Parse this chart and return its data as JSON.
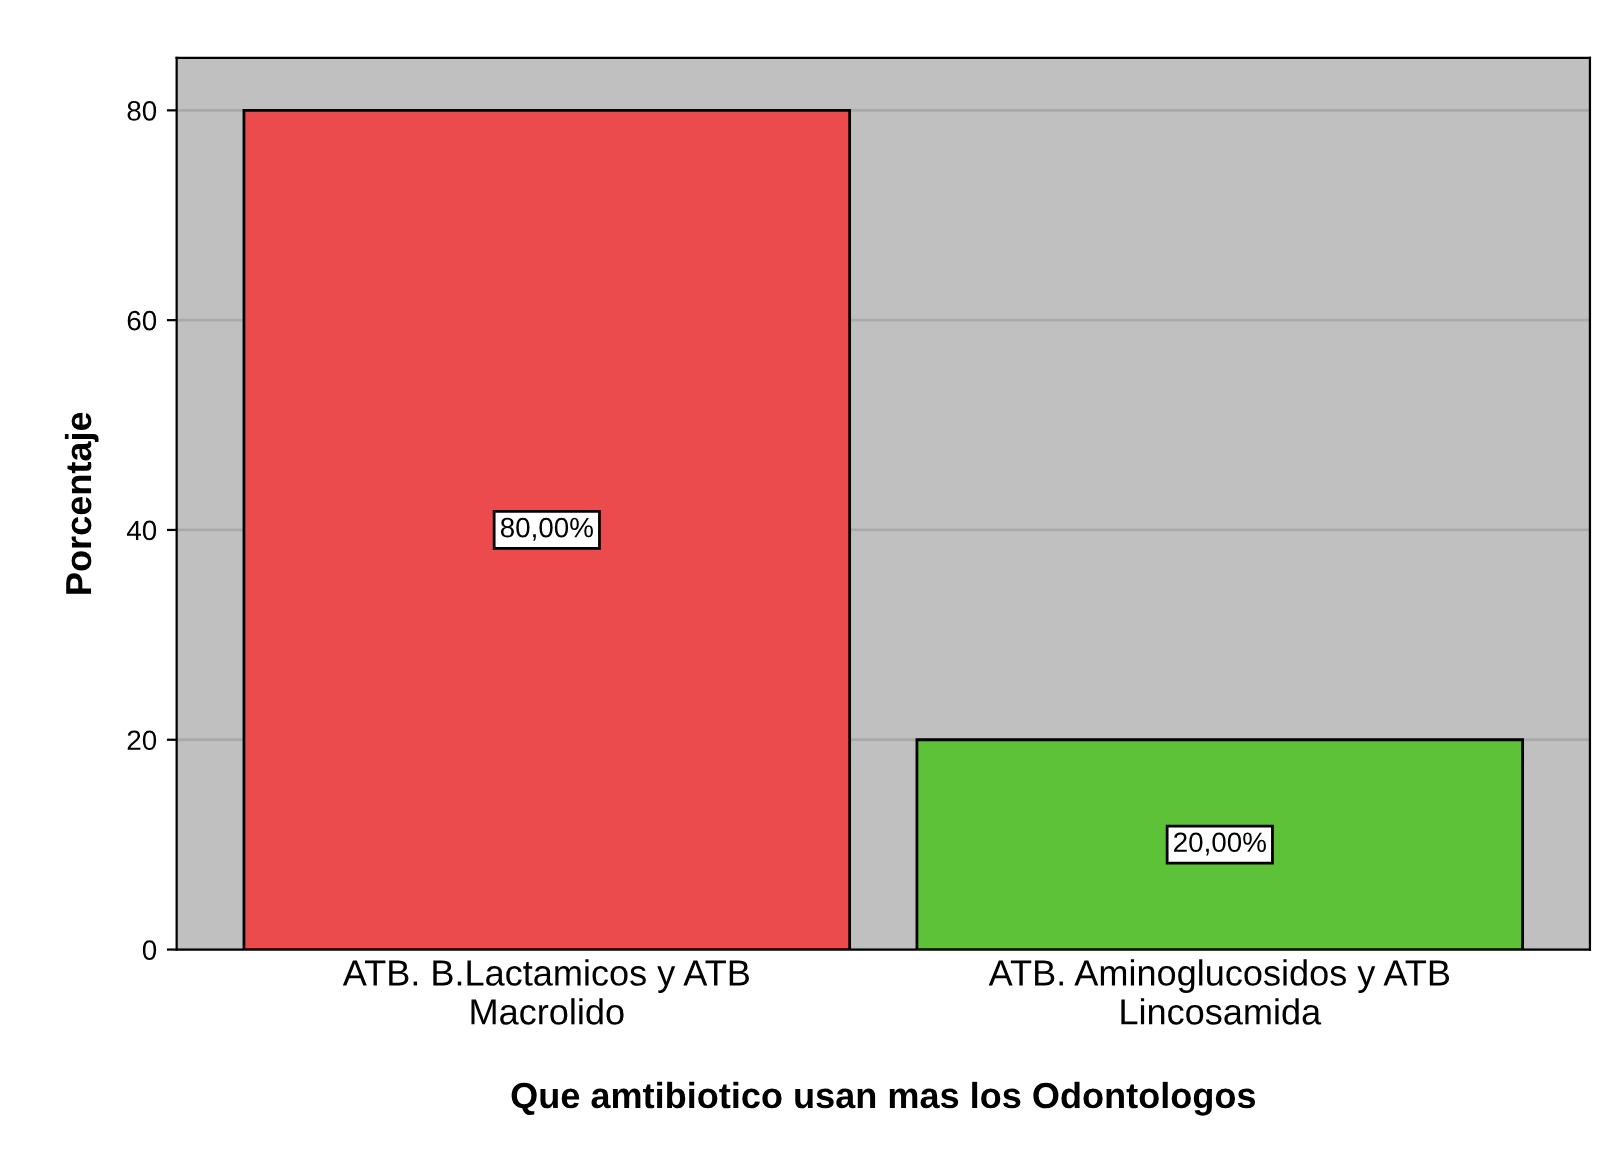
{
  "chart_data": {
    "type": "bar",
    "xlabel": "Que amtibiotico usan mas los Odontologos",
    "ylabel": "Porcentaje",
    "categories": [
      "ATB. B.Lactamicos y ATB\nMacrolido",
      "ATB. Aminoglucosidos y ATB\nLincosamida"
    ],
    "values": [
      80,
      20
    ],
    "colors": [
      "#ec4b4e",
      "#5ec238"
    ],
    "value_labels": [
      "80,00%",
      "20,00%"
    ],
    "ylim": [
      0,
      85
    ],
    "yticks": [
      0,
      20,
      40,
      60,
      80
    ],
    "grid": "y"
  }
}
